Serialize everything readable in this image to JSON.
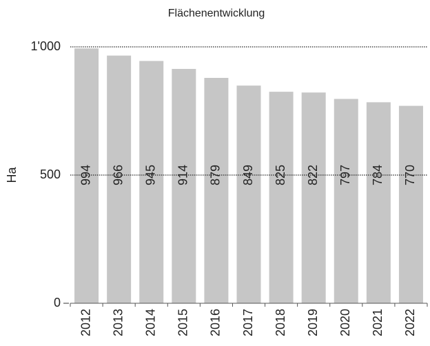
{
  "chart_data": {
    "type": "bar",
    "title": "Flächenentwicklung",
    "y_label": "Ha",
    "categories": [
      "2012",
      "2013",
      "2014",
      "2015",
      "2016",
      "2017",
      "2018",
      "2019",
      "2020",
      "2021",
      "2022"
    ],
    "values": [
      994,
      966,
      945,
      914,
      879,
      849,
      825,
      822,
      797,
      784,
      770
    ],
    "color": "#c6c6c6",
    "ylim": [
      0,
      1000
    ],
    "yticks": [
      0,
      500,
      {
        "value": 1000,
        "label": "1'000"
      }
    ],
    "grid": true
  }
}
